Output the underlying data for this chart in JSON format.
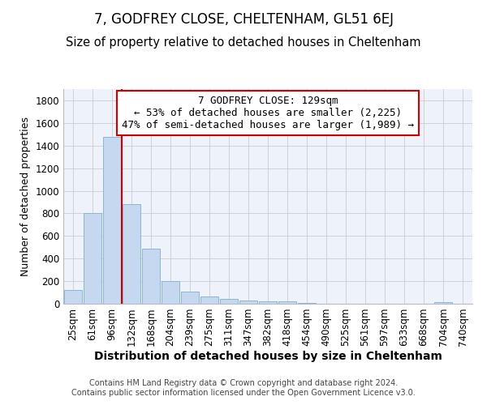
{
  "title": "7, GODFREY CLOSE, CHELTENHAM, GL51 6EJ",
  "subtitle": "Size of property relative to detached houses in Cheltenham",
  "xlabel": "Distribution of detached houses by size in Cheltenham",
  "ylabel": "Number of detached properties",
  "footer_line1": "Contains HM Land Registry data © Crown copyright and database right 2024.",
  "footer_line2": "Contains public sector information licensed under the Open Government Licence v3.0.",
  "annotation_line1": "7 GODFREY CLOSE: 129sqm",
  "annotation_line2": "← 53% of detached houses are smaller (2,225)",
  "annotation_line3": "47% of semi-detached houses are larger (1,989) →",
  "bar_color": "#c5d8f0",
  "bar_edge_color": "#8ab4d8",
  "vline_color": "#cc0000",
  "vline_x_idx": 2.5,
  "categories": [
    "25sqm",
    "61sqm",
    "96sqm",
    "132sqm",
    "168sqm",
    "204sqm",
    "239sqm",
    "275sqm",
    "311sqm",
    "347sqm",
    "382sqm",
    "418sqm",
    "454sqm",
    "490sqm",
    "525sqm",
    "561sqm",
    "597sqm",
    "633sqm",
    "668sqm",
    "704sqm",
    "740sqm"
  ],
  "values": [
    120,
    800,
    1475,
    880,
    490,
    200,
    105,
    65,
    45,
    32,
    25,
    20,
    8,
    0,
    0,
    0,
    0,
    0,
    0,
    15,
    0
  ],
  "ylim": [
    0,
    1900
  ],
  "yticks": [
    0,
    200,
    400,
    600,
    800,
    1000,
    1200,
    1400,
    1600,
    1800
  ],
  "background_color": "#eef2fa",
  "grid_color": "#cccccc",
  "title_fontsize": 12,
  "subtitle_fontsize": 10.5,
  "xlabel_fontsize": 10,
  "ylabel_fontsize": 9,
  "tick_fontsize": 8.5,
  "annotation_fontsize": 9,
  "footer_fontsize": 7
}
